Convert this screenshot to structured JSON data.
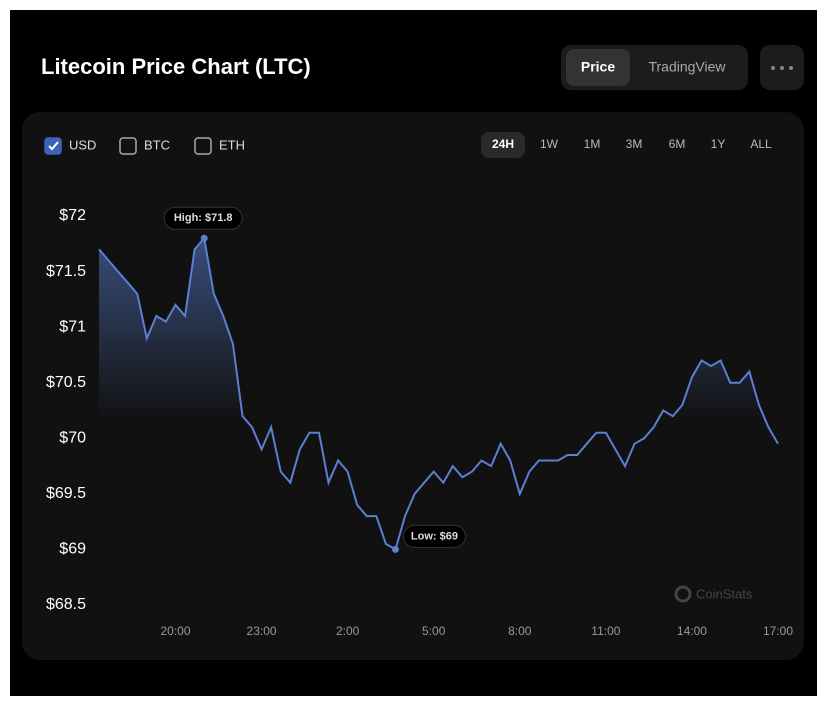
{
  "header": {
    "title": "Litecoin Price Chart (LTC)",
    "views": [
      {
        "label": "Price",
        "active": true
      },
      {
        "label": "TradingView",
        "active": false
      }
    ]
  },
  "currencies": [
    {
      "label": "USD",
      "checked": true
    },
    {
      "label": "BTC",
      "checked": false
    },
    {
      "label": "ETH",
      "checked": false
    }
  ],
  "ranges": [
    {
      "label": "24H",
      "active": true
    },
    {
      "label": "1W",
      "active": false
    },
    {
      "label": "1M",
      "active": false
    },
    {
      "label": "3M",
      "active": false
    },
    {
      "label": "6M",
      "active": false
    },
    {
      "label": "1Y",
      "active": false
    },
    {
      "label": "ALL",
      "active": false
    }
  ],
  "watermark": "CoinStats",
  "chart_data": {
    "type": "line",
    "color": "#5b7fd1",
    "x": [
      "17:20",
      "17:40",
      "18:00",
      "18:20",
      "18:40",
      "19:00",
      "19:20",
      "19:40",
      "20:00",
      "20:20",
      "20:40",
      "21:00",
      "21:20",
      "21:40",
      "22:00",
      "22:20",
      "22:40",
      "23:00",
      "23:20",
      "23:40",
      "0:00",
      "0:20",
      "0:40",
      "1:00",
      "1:20",
      "1:40",
      "2:00",
      "2:20",
      "2:40",
      "3:00",
      "3:20",
      "3:40",
      "4:00",
      "4:20",
      "4:40",
      "5:00",
      "5:20",
      "5:40",
      "6:00",
      "6:20",
      "6:40",
      "7:00",
      "7:20",
      "7:40",
      "8:00",
      "8:20",
      "8:40",
      "9:00",
      "9:20",
      "9:40",
      "10:00",
      "10:20",
      "10:40",
      "11:00",
      "11:20",
      "11:40",
      "12:00",
      "12:20",
      "12:40",
      "13:00",
      "13:20",
      "13:40",
      "14:00",
      "14:20",
      "14:40",
      "15:00",
      "15:20",
      "15:40",
      "16:00",
      "16:20",
      "16:40",
      "17:00"
    ],
    "values": [
      71.7,
      71.6,
      71.5,
      71.4,
      71.3,
      70.9,
      71.1,
      71.05,
      71.2,
      71.1,
      71.7,
      71.8,
      71.3,
      71.1,
      70.85,
      70.2,
      70.1,
      69.9,
      70.1,
      69.7,
      69.6,
      69.9,
      70.05,
      70.05,
      69.6,
      69.8,
      69.7,
      69.4,
      69.3,
      69.3,
      69.05,
      69.0,
      69.3,
      69.5,
      69.6,
      69.7,
      69.6,
      69.75,
      69.65,
      69.7,
      69.8,
      69.75,
      69.95,
      69.8,
      69.5,
      69.7,
      69.8,
      69.8,
      69.8,
      69.85,
      69.85,
      69.95,
      70.05,
      70.05,
      69.9,
      69.75,
      69.95,
      70.0,
      70.1,
      70.25,
      70.2,
      70.3,
      70.55,
      70.7,
      70.65,
      70.7,
      70.5,
      70.5,
      70.6,
      70.3,
      70.1,
      69.95
    ],
    "ylim": [
      68.5,
      72
    ],
    "yticks": [
      {
        "value": 72,
        "label": "$72"
      },
      {
        "value": 71.5,
        "label": "$71.5"
      },
      {
        "value": 71,
        "label": "$71"
      },
      {
        "value": 70.5,
        "label": "$70.5"
      },
      {
        "value": 70,
        "label": "$70"
      },
      {
        "value": 69.5,
        "label": "$69.5"
      },
      {
        "value": 69,
        "label": "$69"
      },
      {
        "value": 68.5,
        "label": "$68.5"
      }
    ],
    "xticks": [
      "20:00",
      "23:00",
      "2:00",
      "5:00",
      "8:00",
      "11:00",
      "14:00",
      "17:00"
    ],
    "annotations": {
      "high": "High: $71.8",
      "low": "Low: $69"
    }
  }
}
